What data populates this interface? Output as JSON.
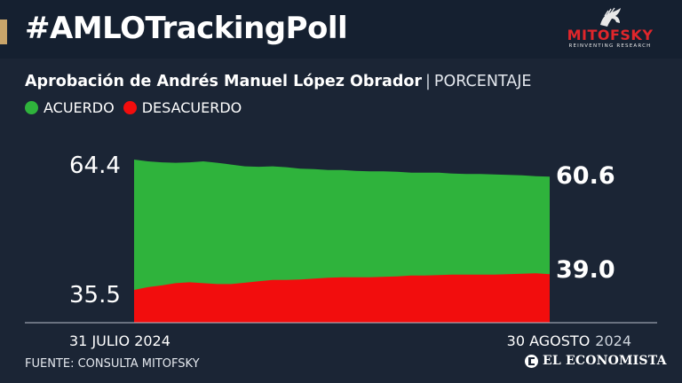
{
  "header": {
    "hashtag": "#AMLOTrackingPoll",
    "logo": {
      "name": "MITOFSKY",
      "tagline": "REINVENTING RESEARCH"
    }
  },
  "subtitle": {
    "main": "Aprobación de Andrés Manuel López Obrador",
    "separator": "|",
    "unit": "PORCENTAJE"
  },
  "legend": [
    {
      "label": "ACUERDO",
      "color": "#2fb33c"
    },
    {
      "label": "DESACUERDO",
      "color": "#f20d0d"
    }
  ],
  "colors": {
    "background": "#1b2535",
    "accent": "#c9a56a",
    "acuerdo": "#2fb33c",
    "desacuerdo": "#f20d0d"
  },
  "chart_data": {
    "type": "area",
    "x_start_label": "31 JULIO 2024",
    "x_end_label": {
      "day_month": "30 AGOSTO",
      "year": "2024"
    },
    "start_values": {
      "acuerdo": "64.4",
      "desacuerdo": "35.5"
    },
    "end_values": {
      "acuerdo": "60.6",
      "desacuerdo": "39.0"
    },
    "ylim": [
      28,
      70
    ],
    "series": [
      {
        "name": "ACUERDO",
        "color": "#2fb33c",
        "values": [
          64.4,
          64.0,
          63.8,
          63.7,
          63.8,
          64.0,
          63.7,
          63.3,
          62.9,
          62.8,
          62.9,
          62.7,
          62.4,
          62.3,
          62.1,
          62.1,
          61.9,
          61.8,
          61.8,
          61.7,
          61.5,
          61.5,
          61.5,
          61.3,
          61.2,
          61.2,
          61.1,
          61.0,
          60.9,
          60.7,
          60.6
        ]
      },
      {
        "name": "DESACUERDO",
        "color": "#f20d0d",
        "values": [
          35.5,
          36.1,
          36.5,
          37.0,
          37.2,
          37.0,
          36.8,
          36.8,
          37.1,
          37.4,
          37.7,
          37.7,
          37.8,
          38.0,
          38.2,
          38.3,
          38.3,
          38.3,
          38.4,
          38.5,
          38.7,
          38.7,
          38.8,
          38.9,
          38.9,
          38.9,
          38.9,
          39.0,
          39.1,
          39.2,
          39.0
        ]
      }
    ]
  },
  "footer": {
    "source": "FUENTE: CONSULTA MITOFSKY",
    "brand": "EL ECONOMISTA"
  }
}
